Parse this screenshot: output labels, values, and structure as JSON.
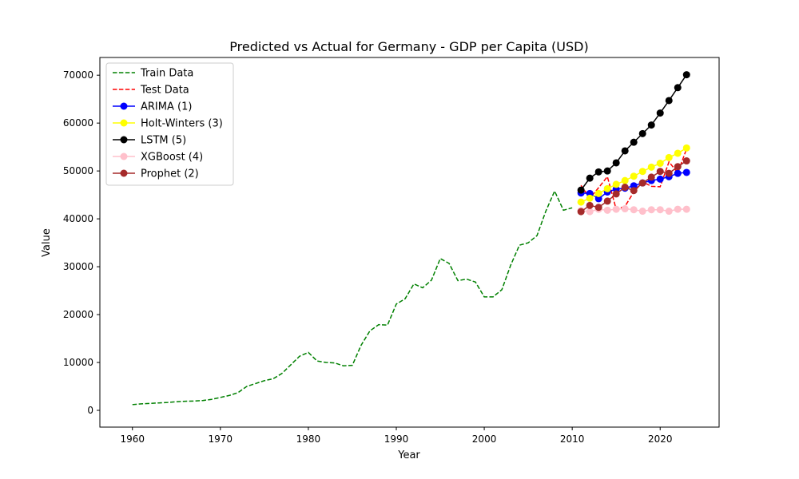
{
  "chart_data": {
    "type": "line",
    "title": "Predicted vs Actual for Germany - GDP per Capita (USD)",
    "xlabel": "Year",
    "ylabel": "Value",
    "xlim": [
      1956.3,
      2026.7
    ],
    "ylim": [
      -3500,
      73700
    ],
    "xticks": [
      1960,
      1970,
      1980,
      1990,
      2000,
      2010,
      2020
    ],
    "yticks": [
      0,
      10000,
      20000,
      30000,
      40000,
      50000,
      60000,
      70000
    ],
    "xtick_labels": [
      "1960",
      "1970",
      "1980",
      "1990",
      "2000",
      "2010",
      "2020"
    ],
    "ytick_labels": [
      "0",
      "10000",
      "20000",
      "30000",
      "40000",
      "50000",
      "60000",
      "70000"
    ],
    "legend_position": "upper-left",
    "grid": false,
    "series": [
      {
        "name": "Train Data",
        "color": "#008000",
        "style": "dashed",
        "marker": false,
        "x": [
          1960,
          1961,
          1962,
          1963,
          1964,
          1965,
          1966,
          1967,
          1968,
          1969,
          1970,
          1971,
          1972,
          1973,
          1974,
          1975,
          1976,
          1977,
          1978,
          1979,
          1980,
          1981,
          1982,
          1983,
          1984,
          1985,
          1986,
          1987,
          1988,
          1989,
          1990,
          1991,
          1992,
          1993,
          1994,
          1995,
          1996,
          1997,
          1998,
          1999,
          2000,
          2001,
          2002,
          2003,
          2004,
          2005,
          2006,
          2007,
          2008,
          2009,
          2010
        ],
        "y": [
          1200,
          1350,
          1450,
          1550,
          1650,
          1800,
          1900,
          1950,
          2050,
          2300,
          2700,
          3100,
          3700,
          5000,
          5600,
          6200,
          6600,
          7700,
          9500,
          11300,
          12100,
          10300,
          10000,
          9900,
          9300,
          9400,
          13600,
          16600,
          17900,
          17800,
          22200,
          23300,
          26400,
          25600,
          27200,
          31700,
          30700,
          27100,
          27400,
          26800,
          23700,
          23700,
          25200,
          30300,
          34500,
          35000,
          36500,
          41600,
          45800,
          41800,
          42300
        ]
      },
      {
        "name": "Test Data",
        "color": "#ff0000",
        "style": "dashed",
        "marker": false,
        "x": [
          2011,
          2012,
          2013,
          2014,
          2015,
          2016,
          2017,
          2018,
          2019,
          2020,
          2021,
          2022,
          2023
        ],
        "y": [
          47000,
          44300,
          46500,
          48800,
          42000,
          42600,
          45600,
          47700,
          46800,
          46700,
          51900,
          49600,
          54600
        ]
      },
      {
        "name": "ARIMA (1)",
        "color": "#0000ff",
        "style": "solid",
        "marker": true,
        "x": [
          2011,
          2012,
          2013,
          2014,
          2015,
          2016,
          2017,
          2018,
          2019,
          2020,
          2021,
          2022,
          2023
        ],
        "y": [
          45400,
          45300,
          44200,
          45600,
          46200,
          46400,
          46900,
          47500,
          48000,
          48300,
          48800,
          49500,
          49700
        ]
      },
      {
        "name": "Holt-Winters (3)",
        "color": "#ffff00",
        "style": "solid",
        "marker": true,
        "x": [
          2011,
          2012,
          2013,
          2014,
          2015,
          2016,
          2017,
          2018,
          2019,
          2020,
          2021,
          2022,
          2023
        ],
        "y": [
          43500,
          44300,
          45300,
          46300,
          47200,
          48000,
          48900,
          49900,
          50800,
          51600,
          52800,
          53700,
          54800
        ]
      },
      {
        "name": "LSTM (5)",
        "color": "#000000",
        "style": "solid",
        "marker": true,
        "x": [
          2011,
          2012,
          2013,
          2014,
          2015,
          2016,
          2017,
          2018,
          2019,
          2020,
          2021,
          2022,
          2023
        ],
        "y": [
          46000,
          48500,
          49800,
          50000,
          51700,
          54200,
          56000,
          57800,
          59600,
          62100,
          64700,
          67400,
          70100
        ]
      },
      {
        "name": "XGBoost (4)",
        "color": "#ffc0cb",
        "style": "solid",
        "marker": true,
        "x": [
          2011,
          2012,
          2013,
          2014,
          2015,
          2016,
          2017,
          2018,
          2019,
          2020,
          2021,
          2022,
          2023
        ],
        "y": [
          41700,
          41500,
          42000,
          41800,
          42000,
          42100,
          41900,
          41600,
          41900,
          41900,
          41600,
          42000,
          42000
        ]
      },
      {
        "name": "Prophet (2)",
        "color": "#a52a2a",
        "style": "solid",
        "marker": true,
        "x": [
          2011,
          2012,
          2013,
          2014,
          2015,
          2016,
          2017,
          2018,
          2019,
          2020,
          2021,
          2022,
          2023
        ],
        "y": [
          41500,
          42800,
          42400,
          43700,
          45200,
          46600,
          45900,
          47500,
          48700,
          49900,
          49500,
          50900,
          52100
        ]
      }
    ]
  }
}
